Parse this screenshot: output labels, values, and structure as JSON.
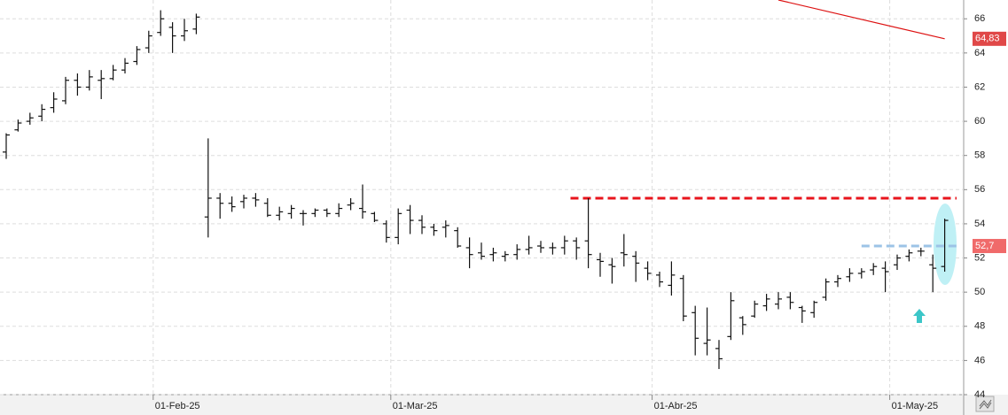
{
  "chart_data": {
    "type": "ohlc",
    "categories": [
      null,
      null,
      null,
      null,
      null,
      null,
      null,
      null,
      null,
      null,
      null,
      null,
      "01-Feb-25",
      null,
      null,
      null,
      null,
      null,
      null,
      null,
      null,
      null,
      null,
      null,
      null,
      null,
      null,
      null,
      null,
      null,
      null,
      null,
      "01-Mar-25",
      null,
      null,
      null,
      null,
      null,
      null,
      null,
      null,
      null,
      null,
      null,
      null,
      null,
      null,
      null,
      null,
      null,
      null,
      null,
      null,
      null,
      "01-Abr-25",
      null,
      null,
      null,
      null,
      null,
      null,
      null,
      null,
      null,
      null,
      null,
      null,
      null,
      null,
      null,
      null,
      null,
      null,
      null,
      "01-May-25",
      null,
      null,
      null,
      null,
      null
    ],
    "open": [
      58.2,
      59.5,
      60,
      60.3,
      60.8,
      61.2,
      62.4,
      62,
      62.4,
      62.5,
      63,
      63.5,
      64.3,
      65.2,
      65.5,
      65,
      65.4,
      54.4,
      55.5,
      55.2,
      55.3,
      55.5,
      55.2,
      54.5,
      54.6,
      54.6,
      54.6,
      54.8,
      54.6,
      55.1,
      54.9,
      54.6,
      54,
      53.2,
      54.8,
      54.2,
      53.8,
      53.8,
      53.6,
      52.6,
      52.3,
      52.2,
      52.1,
      52.2,
      52.5,
      52.7,
      52.6,
      52.6,
      53,
      53,
      51.9,
      51.6,
      52.3,
      52.1,
      51.4,
      51,
      50.4,
      50.8,
      48.8,
      47,
      46.7,
      47.4,
      48.5,
      48.6,
      49.2,
      49.3,
      49.7,
      49.1,
      48.8,
      49.7,
      50.6,
      50.9,
      51.1,
      51.3,
      51.4,
      51.6,
      52.1,
      52.4,
      51.6,
      51.5
    ],
    "high": [
      59.3,
      60.1,
      60.5,
      61,
      61.7,
      62.6,
      62.8,
      63,
      63,
      63.3,
      63.7,
      64.4,
      65.3,
      66.5,
      65.8,
      66,
      66.3,
      59,
      55.8,
      55.6,
      55.7,
      55.8,
      55.5,
      55,
      55.1,
      54.8,
      54.9,
      54.9,
      55.2,
      55.5,
      56.3,
      54.7,
      54.2,
      54.9,
      55.1,
      54.5,
      54,
      54.2,
      53.8,
      53.2,
      52.9,
      52.6,
      52.4,
      52.8,
      53.3,
      53,
      52.9,
      53.3,
      53.2,
      55.5,
      52.3,
      52,
      53.4,
      52.4,
      51.8,
      51.2,
      51.8,
      51,
      49.2,
      49.1,
      47.2,
      50,
      48.6,
      49.5,
      49.9,
      50,
      50,
      49.2,
      49.5,
      50.8,
      51,
      51.4,
      51.4,
      51.7,
      51.8,
      52.2,
      52.5,
      52.6,
      52.2,
      54.3
    ],
    "low": [
      57.8,
      59.4,
      59.8,
      60,
      60.5,
      61,
      61.5,
      61.8,
      61.3,
      62.4,
      62.8,
      63.3,
      64,
      65,
      64,
      64.7,
      65.1,
      53.2,
      54.3,
      54.7,
      54.9,
      55,
      54.4,
      54.2,
      54.3,
      53.9,
      54.4,
      54.4,
      54.4,
      54.8,
      54.3,
      54.1,
      52.9,
      52.8,
      53.4,
      53.4,
      53.3,
      53.2,
      52.6,
      51.4,
      51.9,
      51.8,
      51.8,
      51.9,
      52.2,
      52.3,
      52.2,
      52.2,
      51.9,
      51.4,
      50.9,
      50.5,
      51.5,
      50.6,
      50.7,
      50.3,
      49.8,
      48.3,
      46.3,
      46.3,
      45.5,
      47.2,
      47.5,
      48.5,
      48.9,
      49,
      49,
      48.2,
      48.5,
      49.5,
      50.3,
      50.6,
      50.8,
      51,
      50,
      51.3,
      51.8,
      52.1,
      50,
      51.2
    ],
    "close": [
      59.2,
      59.9,
      60.2,
      60.7,
      61.3,
      62.4,
      62,
      62.6,
      62.5,
      63,
      63.4,
      64.2,
      65,
      66,
      65,
      65.3,
      66.1,
      55.5,
      55.2,
      55,
      55.5,
      55.4,
      54.5,
      54.7,
      54.9,
      54.6,
      54.8,
      54.6,
      54.9,
      55.2,
      54.7,
      54.2,
      53.2,
      54.6,
      54.2,
      53.8,
      53.6,
      53.9,
      52.7,
      52.2,
      52.1,
      52.3,
      52.2,
      52.5,
      52.6,
      52.6,
      52.6,
      53,
      52.6,
      52.2,
      51.8,
      51.5,
      52.2,
      51.7,
      51.1,
      50.6,
      51,
      48.6,
      47.3,
      47.2,
      46.1,
      49.5,
      48.1,
      49.3,
      49.6,
      49.6,
      49.4,
      48.9,
      49.4,
      50.6,
      50.8,
      51.1,
      51.2,
      51.5,
      51.2,
      52,
      52.3,
      52.4,
      51.4,
      54.2
    ],
    "ylim": [
      44,
      67.1
    ],
    "yticks": [
      44,
      46,
      48,
      50,
      52,
      54,
      56,
      58,
      60,
      62,
      64,
      66
    ],
    "grid": true,
    "trendline": {
      "color": "#d11",
      "x": [
        65,
        79
      ],
      "values": [
        67.1,
        64.83
      ]
    },
    "reference_lines": [
      {
        "value": 55.5,
        "color": "#e8141c",
        "from": 47.5
      },
      {
        "value": 52.7,
        "color": "#9cc3e6",
        "from": 72
      }
    ],
    "price_labels": [
      {
        "value": 64.83,
        "label": "64,83",
        "color": "#e04848"
      },
      {
        "value": 52.7,
        "label": "52,7",
        "color": "#f06a6a"
      }
    ]
  }
}
